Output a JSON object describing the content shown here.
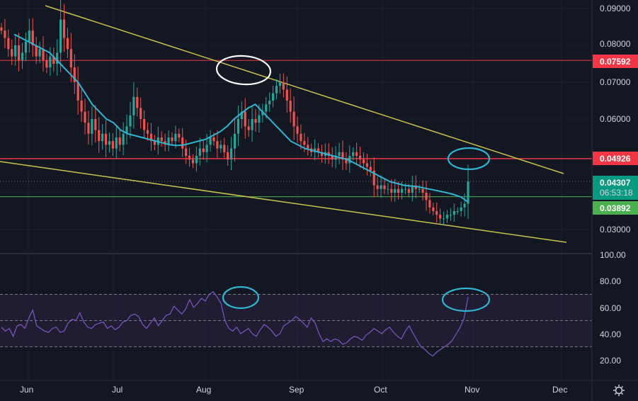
{
  "colors": {
    "background": "#131722",
    "grid": "#1e222d",
    "candle_up": "#26a69a",
    "candle_down": "#ef5350",
    "ma_line": "#2fb5d2",
    "trendline": "#c9c24a",
    "resistance_line": "#f23645",
    "support_line": "#4caf50",
    "rsi_line": "#7e57c2",
    "rsi_band": "#2a2140",
    "annotation": "#ffffff",
    "annotation_blue": "#2fb5d2",
    "axis_text": "#d1d4dc",
    "badge_resistance": "#f23645",
    "badge_current": "#089981",
    "badge_support": "#4caf50"
  },
  "price_axis": {
    "ticks": [
      "0.09000",
      "0.08000",
      "0.07000",
      "0.06000",
      "0.03000"
    ],
    "tick_values": [
      0.09,
      0.08,
      0.07,
      0.06,
      0.03
    ]
  },
  "rsi_axis": {
    "ticks": [
      "100.00",
      "80.00",
      "60.00",
      "40.00",
      "20.00"
    ],
    "tick_values": [
      100,
      80,
      60,
      40,
      20
    ]
  },
  "time_axis": {
    "labels": [
      "Jun",
      "Jul",
      "Aug",
      "Sep",
      "Oct",
      "Nov",
      "Dec"
    ]
  },
  "badges": {
    "resistance_upper": {
      "label": "0.07592",
      "value": 0.07592
    },
    "resistance_lower": {
      "label": "0.04926",
      "value": 0.04926
    },
    "current_price": {
      "label": "0.04307",
      "value": 0.04307
    },
    "countdown": {
      "label": "06:53:18"
    },
    "support": {
      "label": "0.03892",
      "value": 0.03892
    }
  },
  "settings_icon": "gear-icon",
  "chart_data": {
    "type": "candlestick",
    "price_close_series": [
      0.084,
      0.082,
      0.079,
      0.077,
      0.08,
      0.076,
      0.078,
      0.081,
      0.084,
      0.08,
      0.077,
      0.079,
      0.076,
      0.074,
      0.077,
      0.075,
      0.078,
      0.087,
      0.082,
      0.079,
      0.074,
      0.07,
      0.065,
      0.062,
      0.059,
      0.056,
      0.06,
      0.057,
      0.054,
      0.056,
      0.053,
      0.054,
      0.052,
      0.055,
      0.053,
      0.056,
      0.058,
      0.061,
      0.066,
      0.063,
      0.06,
      0.057,
      0.056,
      0.054,
      0.053,
      0.055,
      0.054,
      0.053,
      0.055,
      0.054,
      0.056,
      0.055,
      0.052,
      0.05,
      0.049,
      0.048,
      0.05,
      0.052,
      0.051,
      0.053,
      0.055,
      0.054,
      0.052,
      0.053,
      0.051,
      0.049,
      0.052,
      0.056,
      0.06,
      0.062,
      0.058,
      0.057,
      0.06,
      0.059,
      0.061,
      0.062,
      0.064,
      0.065,
      0.067,
      0.069,
      0.07,
      0.068,
      0.065,
      0.062,
      0.058,
      0.056,
      0.054,
      0.053,
      0.052,
      0.051,
      0.052,
      0.051,
      0.05,
      0.051,
      0.05,
      0.049,
      0.05,
      0.051,
      0.049,
      0.048,
      0.05,
      0.051,
      0.05,
      0.049,
      0.048,
      0.047,
      0.046,
      0.042,
      0.041,
      0.042,
      0.041,
      0.041,
      0.04,
      0.041,
      0.04,
      0.041,
      0.041,
      0.04,
      0.042,
      0.041,
      0.041,
      0.04,
      0.038,
      0.036,
      0.035,
      0.034,
      0.033,
      0.033,
      0.034,
      0.034,
      0.035,
      0.035,
      0.036,
      0.037,
      0.043
    ],
    "ma_series": [
      0.083,
      0.082,
      0.081,
      0.08,
      0.079,
      0.078,
      0.076,
      0.074,
      0.072,
      0.07,
      0.067,
      0.064,
      0.062,
      0.06,
      0.059,
      0.057,
      0.056,
      0.0555,
      0.055,
      0.0545,
      0.054,
      0.0535,
      0.053,
      0.0528,
      0.053,
      0.0535,
      0.054,
      0.0545,
      0.0555,
      0.0565,
      0.058,
      0.06,
      0.0615,
      0.063,
      0.064,
      0.062,
      0.06,
      0.058,
      0.056,
      0.054,
      0.053,
      0.052,
      0.0515,
      0.051,
      0.0505,
      0.05,
      0.0495,
      0.049,
      0.048,
      0.047,
      0.046,
      0.045,
      0.044,
      0.043,
      0.0425,
      0.042,
      0.0418,
      0.0416,
      0.0412,
      0.0408,
      0.0404,
      0.04,
      0.0395,
      0.0388,
      0.0375
    ],
    "rsi_series": [
      45,
      42,
      44,
      38,
      46,
      47,
      44,
      52,
      58,
      46,
      44,
      42,
      41,
      44,
      45,
      41,
      42,
      48,
      51,
      50,
      56,
      49,
      45,
      44,
      47,
      48,
      49,
      44,
      46,
      43,
      45,
      49,
      50,
      54,
      55,
      53,
      47,
      44,
      48,
      52,
      46,
      50,
      54,
      55,
      61,
      58,
      55,
      59,
      66,
      60,
      63,
      67,
      65,
      70,
      72,
      68,
      63,
      50,
      44,
      42,
      45,
      40,
      42,
      44,
      40,
      38,
      43,
      47,
      45,
      42,
      38,
      40,
      46,
      48,
      50,
      53,
      51,
      48,
      45,
      52,
      48,
      40,
      34,
      36,
      34,
      36,
      35,
      32,
      33,
      36,
      38,
      37,
      35,
      39,
      41,
      44,
      42,
      40,
      43,
      45,
      41,
      38,
      36,
      42,
      46,
      40,
      35,
      30,
      28,
      25,
      23,
      26,
      28,
      30,
      32,
      35,
      40,
      45,
      52,
      68
    ],
    "rsi_levels": {
      "upper": 70,
      "middle": 50,
      "lower": 30
    },
    "ylim_price": [
      0.025,
      0.092
    ],
    "ylim_rsi": [
      10,
      100
    ],
    "horizontal_levels": [
      0.07592,
      0.04926,
      0.03892
    ],
    "grid": true
  }
}
